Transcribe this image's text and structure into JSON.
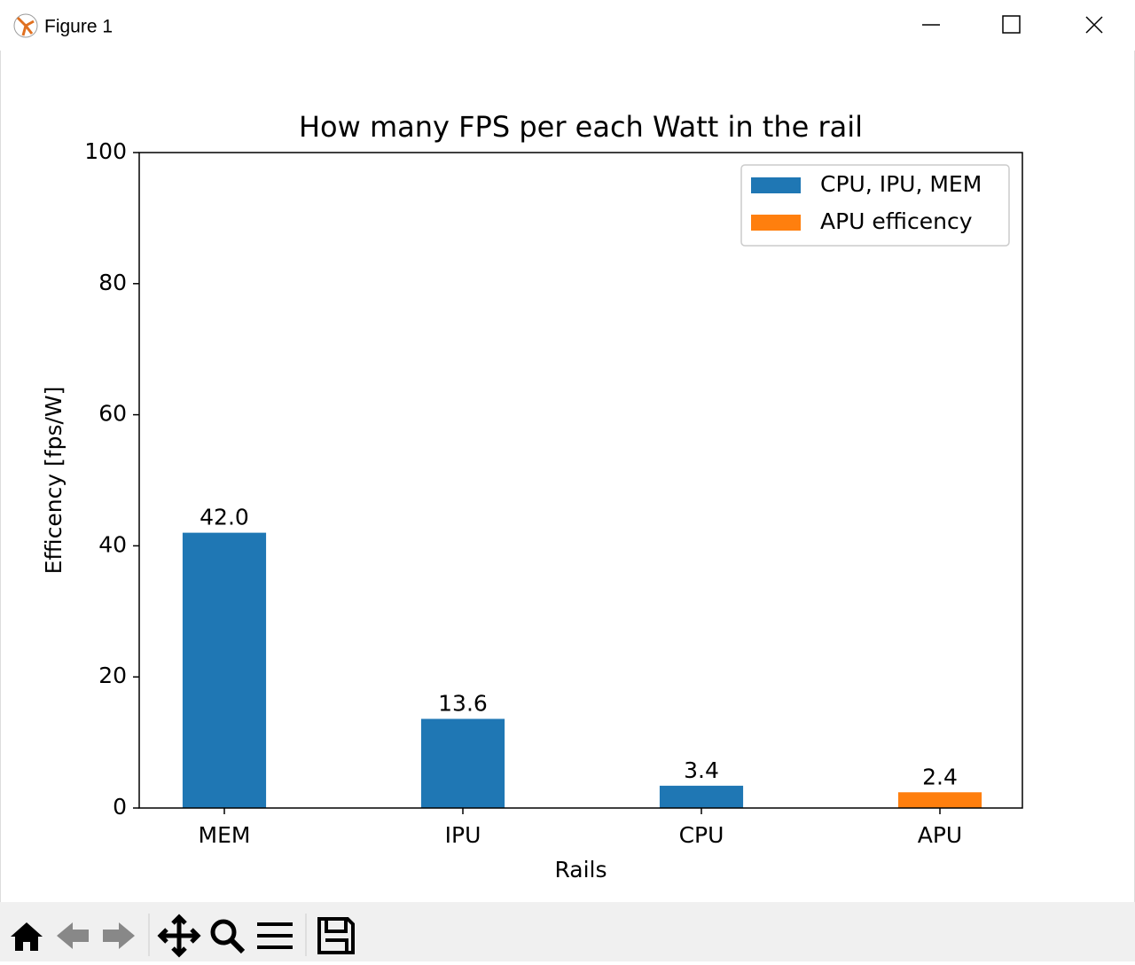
{
  "window": {
    "title": "Figure 1"
  },
  "chart_data": {
    "type": "bar",
    "title": "How many FPS per each Watt in the rail",
    "x_label": "Rails",
    "y_label": "Efficency [fps/W]",
    "categories": [
      "MEM",
      "IPU",
      "CPU",
      "APU"
    ],
    "series": [
      {
        "name": "CPU, IPU, MEM",
        "color": "#1f77b4",
        "values": [
          42.0,
          13.6,
          3.4,
          null
        ],
        "value_labels": [
          "42.0",
          "13.6",
          "3.4",
          null
        ]
      },
      {
        "name": "APU efficency",
        "color": "#ff7f0e",
        "values": [
          null,
          null,
          null,
          2.4
        ]
      }
    ],
    "ylim": [
      0,
      100
    ],
    "yticks": [
      0,
      20,
      40,
      60,
      80,
      100
    ],
    "legend": "upper right"
  }
}
